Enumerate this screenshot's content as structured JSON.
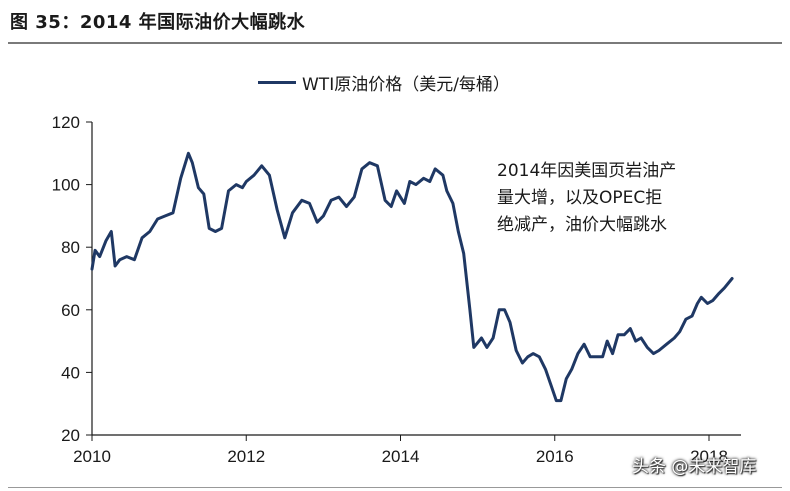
{
  "figure": {
    "title": "图 35：2014 年国际油价大幅跳水",
    "annotation_lines": [
      "2014年因美国页岩油产",
      "量大增，以及OPEC拒",
      "绝减产，油价大幅跳水"
    ],
    "watermark": "头条 @未来智库"
  },
  "colors": {
    "series": "#1f3864",
    "axis": "#1a1a1a"
  },
  "chart_data": {
    "type": "line",
    "title": "",
    "xlabel": "",
    "ylabel": "",
    "xlim": [
      2010,
      2018.4
    ],
    "ylim": [
      20,
      120
    ],
    "x_ticks": [
      2010,
      2012,
      2014,
      2016,
      2018
    ],
    "x_tick_labels": [
      "2010",
      "2012",
      "2014",
      "2016",
      "2018"
    ],
    "y_ticks": [
      20,
      40,
      60,
      80,
      100,
      120
    ],
    "y_tick_labels": [
      "20",
      "40",
      "60",
      "80",
      "100",
      "120"
    ],
    "grid": false,
    "legend": "top-center",
    "series": [
      {
        "name": "WTI原油价格（美元/每桶）",
        "x": [
          2010.0,
          2010.04,
          2010.1,
          2010.18,
          2010.25,
          2010.3,
          2010.36,
          2010.45,
          2010.55,
          2010.65,
          2010.75,
          2010.85,
          2010.95,
          2011.05,
          2011.15,
          2011.25,
          2011.3,
          2011.38,
          2011.45,
          2011.52,
          2011.6,
          2011.68,
          2011.77,
          2011.87,
          2011.95,
          2012.0,
          2012.1,
          2012.2,
          2012.3,
          2012.4,
          2012.5,
          2012.6,
          2012.72,
          2012.82,
          2012.92,
          2013.0,
          2013.1,
          2013.2,
          2013.3,
          2013.4,
          2013.5,
          2013.6,
          2013.7,
          2013.8,
          2013.88,
          2013.95,
          2014.05,
          2014.12,
          2014.2,
          2014.3,
          2014.38,
          2014.45,
          2014.55,
          2014.6,
          2014.68,
          2014.75,
          2014.82,
          2014.9,
          2014.95,
          2015.05,
          2015.12,
          2015.2,
          2015.28,
          2015.35,
          2015.42,
          2015.5,
          2015.58,
          2015.65,
          2015.72,
          2015.8,
          2015.88,
          2015.95,
          2016.02,
          2016.08,
          2016.15,
          2016.22,
          2016.3,
          2016.38,
          2016.46,
          2016.55,
          2016.62,
          2016.68,
          2016.75,
          2016.82,
          2016.9,
          2016.98,
          2017.05,
          2017.12,
          2017.2,
          2017.28,
          2017.35,
          2017.45,
          2017.55,
          2017.62,
          2017.7,
          2017.78,
          2017.85,
          2017.9,
          2017.98,
          2018.05,
          2018.12,
          2018.2,
          2018.3
        ],
        "values": [
          73,
          79,
          77,
          82,
          85,
          74,
          76,
          77,
          76,
          83,
          85,
          89,
          90,
          91,
          102,
          110,
          107,
          99,
          97,
          86,
          85,
          86,
          98,
          100,
          99,
          101,
          103,
          106,
          103,
          92,
          83,
          91,
          95,
          94,
          88,
          90,
          95,
          96,
          93,
          96,
          105,
          107,
          106,
          95,
          93,
          98,
          94,
          101,
          100,
          102,
          101,
          105,
          103,
          98,
          94,
          85,
          78,
          60,
          48,
          51,
          48,
          51,
          60,
          60,
          56,
          47,
          43,
          45,
          46,
          45,
          41,
          36,
          31,
          31,
          38,
          41,
          46,
          49,
          45,
          45,
          45,
          50,
          46,
          52,
          52,
          54,
          50,
          51,
          48,
          46,
          47,
          49,
          51,
          53,
          57,
          58,
          62,
          64,
          62,
          63,
          65,
          67,
          70
        ]
      }
    ]
  }
}
